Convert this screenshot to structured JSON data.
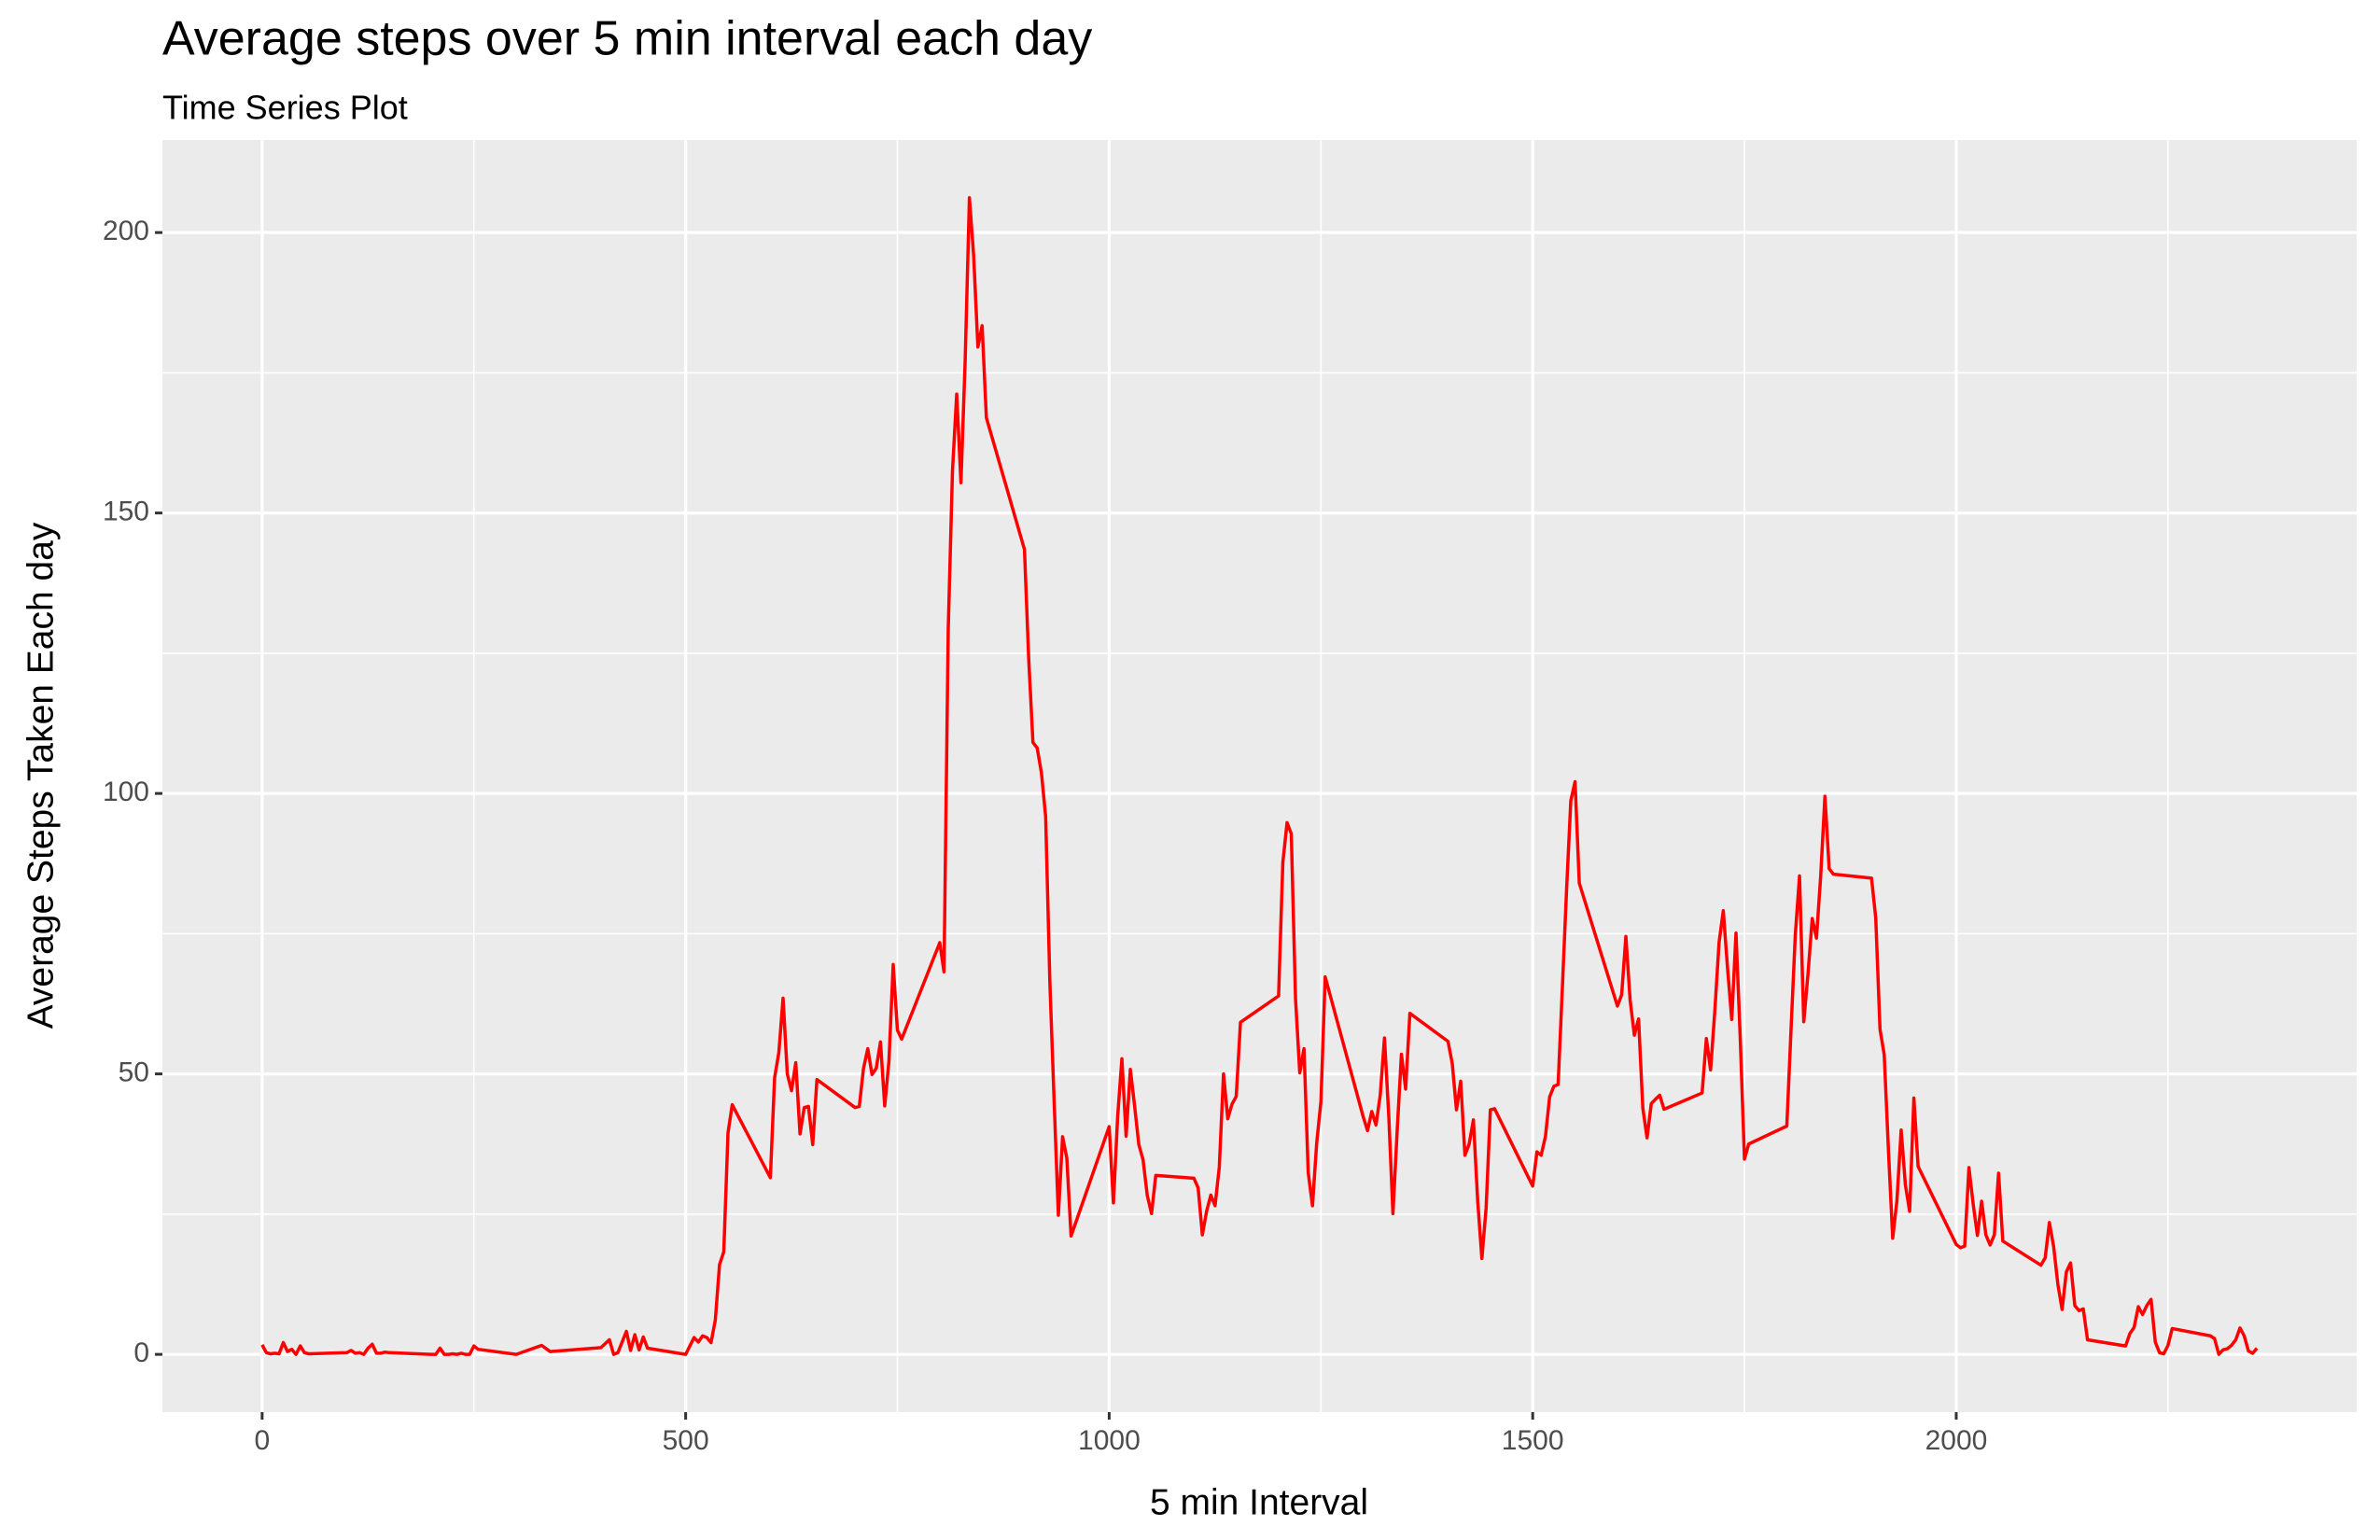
{
  "chart_data": {
    "type": "line",
    "title": "Average steps over 5 min interval each day",
    "subtitle": "Time Series Plot",
    "xlabel": "5 min Interval",
    "ylabel": "Average Steps Taken Each day",
    "color": "#ff0000",
    "x": [
      0,
      5,
      10,
      15,
      20,
      25,
      30,
      35,
      40,
      45,
      50,
      55,
      100,
      105,
      110,
      115,
      120,
      125,
      130,
      135,
      140,
      145,
      150,
      200,
      205,
      210,
      215,
      220,
      225,
      230,
      235,
      240,
      245,
      250,
      255,
      300,
      330,
      340,
      400,
      410,
      415,
      420,
      430,
      435,
      440,
      445,
      450,
      455,
      500,
      510,
      515,
      520,
      525,
      530,
      535,
      540,
      545,
      550,
      555,
      600,
      605,
      610,
      615,
      620,
      625,
      630,
      635,
      640,
      645,
      650,
      655,
      700,
      705,
      710,
      715,
      720,
      725,
      730,
      735,
      740,
      745,
      750,
      755,
      800,
      805,
      810,
      815,
      820,
      825,
      830,
      835,
      840,
      845,
      850,
      855,
      900,
      905,
      910,
      915,
      920,
      925,
      930,
      935,
      940,
      945,
      950,
      955,
      1000,
      1005,
      1010,
      1015,
      1020,
      1025,
      1030,
      1035,
      1040,
      1045,
      1050,
      1055,
      1100,
      1105,
      1110,
      1115,
      1120,
      1125,
      1130,
      1135,
      1140,
      1145,
      1150,
      1155,
      1200,
      1205,
      1210,
      1215,
      1220,
      1225,
      1230,
      1235,
      1240,
      1245,
      1250,
      1255,
      1300,
      1305,
      1310,
      1315,
      1320,
      1325,
      1330,
      1335,
      1340,
      1345,
      1350,
      1355,
      1400,
      1405,
      1410,
      1415,
      1420,
      1425,
      1430,
      1435,
      1440,
      1445,
      1450,
      1455,
      1500,
      1505,
      1510,
      1515,
      1520,
      1525,
      1530,
      1535,
      1540,
      1545,
      1550,
      1555,
      1600,
      1605,
      1610,
      1615,
      1620,
      1625,
      1630,
      1635,
      1640,
      1645,
      1650,
      1655,
      1700,
      1705,
      1710,
      1715,
      1720,
      1725,
      1730,
      1735,
      1740,
      1745,
      1750,
      1755,
      1800,
      1805,
      1810,
      1815,
      1820,
      1825,
      1830,
      1835,
      1840,
      1845,
      1850,
      1855,
      1900,
      1905,
      1910,
      1915,
      1920,
      1925,
      1930,
      1935,
      1940,
      1945,
      1950,
      1955,
      2000,
      2005,
      2010,
      2015,
      2020,
      2025,
      2030,
      2035,
      2040,
      2045,
      2050,
      2055,
      2100,
      2105,
      2110,
      2115,
      2120,
      2125,
      2130,
      2135,
      2140,
      2145,
      2150,
      2155,
      2200,
      2205,
      2210,
      2215,
      2220,
      2225,
      2230,
      2235,
      2240,
      2245,
      2250,
      2255,
      2300,
      2305,
      2310,
      2315,
      2320,
      2325,
      2330,
      2335,
      2340,
      2345,
      2350,
      2355
    ],
    "values": [
      1.7,
      0.3,
      0.1,
      0.2,
      0.1,
      2.1,
      0.5,
      0.9,
      0,
      1.5,
      0.3,
      0.1,
      0.3,
      0.7,
      0.2,
      0.3,
      0,
      1.1,
      1.8,
      0.2,
      0.2,
      0.4,
      0.3,
      0,
      0,
      1.1,
      0,
      0,
      0.1,
      0,
      0.2,
      0,
      0,
      1.5,
      0.9,
      0,
      1.6,
      0.5,
      1.2,
      2.6,
      0,
      0.3,
      4.1,
      0.7,
      3.5,
      0.8,
      3.1,
      1.1,
      0,
      3.0,
      2.2,
      3.3,
      3.0,
      2.1,
      6.1,
      16,
      18.3,
      39.5,
      44.5,
      31.5,
      49.3,
      53.8,
      63.5,
      50,
      47,
      52,
      39.3,
      44,
      44.2,
      37.4,
      49,
      44,
      44.2,
      51,
      54.5,
      49.9,
      51,
      55.7,
      44.3,
      52.3,
      69.5,
      57.8,
      56.2,
      73.4,
      68.2,
      129.4,
      157.5,
      171.2,
      155.4,
      177.3,
      206.2,
      195.9,
      179.6,
      183.4,
      167,
      143.5,
      124,
      109.1,
      108.1,
      103.7,
      95.9,
      66.2,
      45.2,
      24.8,
      38.8,
      35,
      21.1,
      40.6,
      27,
      42.4,
      52.7,
      38.9,
      50.8,
      44.3,
      37.4,
      34.7,
      28.3,
      25.1,
      31.9,
      31.4,
      29.7,
      21.3,
      25.5,
      28.4,
      26.5,
      33.4,
      50,
      42,
      44.6,
      46,
      59.2,
      63.9,
      87.7,
      94.8,
      92.8,
      63.4,
      50.2,
      54.5,
      32.4,
      26.5,
      37.7,
      45.1,
      67.3,
      42.3,
      39.9,
      43.3,
      40.9,
      46.2,
      56.4,
      42.8,
      25.1,
      39.9,
      53.5,
      47.3,
      60.8,
      55.8,
      51.9,
      43.6,
      48.7,
      35.5,
      37.5,
      41.8,
      27.5,
      17.1,
      26.1,
      43.6,
      43.8,
      30,
      36.1,
      35.5,
      38.8,
      45.9,
      47.8,
      48.1,
      65.3,
      82.9,
      98.7,
      102.1,
      84,
      62.1,
      64.1,
      74.5,
      63.2,
      56.9,
      59.8,
      43.9,
      38.6,
      44.7,
      45.5,
      46.2,
      43.7,
      46.6,
      56.3,
      50.7,
      61.2,
      73.4,
      79.1,
      68.9,
      59.7,
      75.1,
      56.5,
      34.8,
      37.5,
      40.7,
      58,
      74.7,
      85.3,
      59.3,
      67.8,
      77.7,
      74.2,
      85.3,
      99.5,
      86.6,
      85.6,
      84.9,
      77.8,
      58,
      53.4,
      36.3,
      20.7,
      27.4,
      40,
      30.2,
      25.5,
      45.7,
      33.5,
      19.6,
      19,
      19.3,
      33.3,
      26.8,
      21.2,
      27.3,
      21.3,
      19.5,
      21.3,
      32.3,
      20.2,
      15.9,
      17.2,
      23.5,
      19.2,
      12.5,
      8,
      14.7,
      16.3,
      8.7,
      7.8,
      8.1,
      2.6,
      1.5,
      3.7,
      4.8,
      8.5,
      7.1,
      8.7,
      9.8,
      2.2,
      0.3,
      0.1,
      1.6,
      4.6,
      3.3,
      2.8,
      0,
      0.8,
      1,
      1.6,
      2.6,
      4.7,
      3.3,
      0.6,
      0.2,
      1.1
    ],
    "xlim": [
      -117.75,
      2472.75
    ],
    "ylim": [
      -10.3,
      216.5
    ],
    "xticks": [
      0,
      500,
      1000,
      1500,
      2000
    ],
    "yticks": [
      0,
      50,
      100,
      150,
      200
    ],
    "xminor": [
      250,
      750,
      1250,
      1750,
      2250
    ],
    "yminor": [
      25,
      75,
      125,
      175
    ],
    "grid": true
  }
}
